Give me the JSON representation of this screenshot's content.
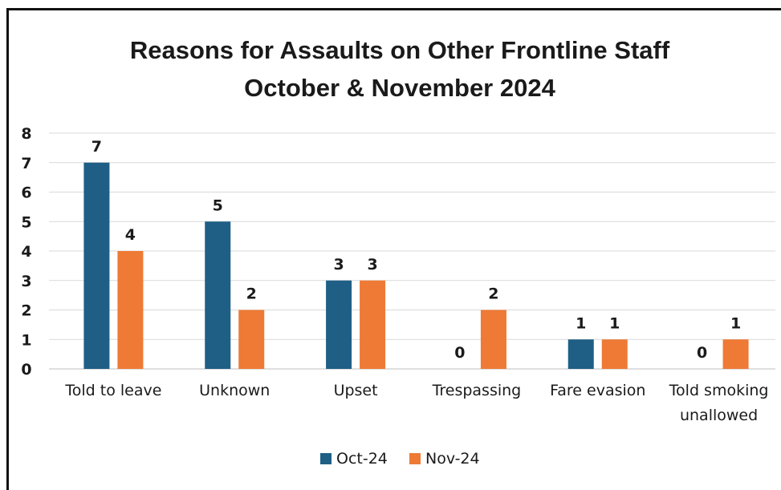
{
  "chart_data": {
    "type": "bar",
    "title_lines": [
      "Reasons for Assaults on Other Frontline Staff",
      "October & November 2024"
    ],
    "categories": [
      [
        "Told to leave"
      ],
      [
        "Unknown"
      ],
      [
        "Upset"
      ],
      [
        "Trespassing"
      ],
      [
        "Fare evasion"
      ],
      [
        "Told smoking",
        "unallowed"
      ]
    ],
    "series": [
      {
        "name": "Oct-24",
        "color": "#1f5f86",
        "values": [
          7,
          5,
          3,
          0,
          1,
          0
        ]
      },
      {
        "name": "Nov-24",
        "color": "#ee7a35",
        "values": [
          4,
          2,
          3,
          2,
          1,
          1
        ]
      }
    ],
    "ylim": [
      0,
      8
    ],
    "yticks": [
      "0",
      "1",
      "2",
      "3",
      "4",
      "5",
      "6",
      "7",
      "8"
    ],
    "grid": true,
    "data_labels": true,
    "legend_position": "bottom"
  }
}
